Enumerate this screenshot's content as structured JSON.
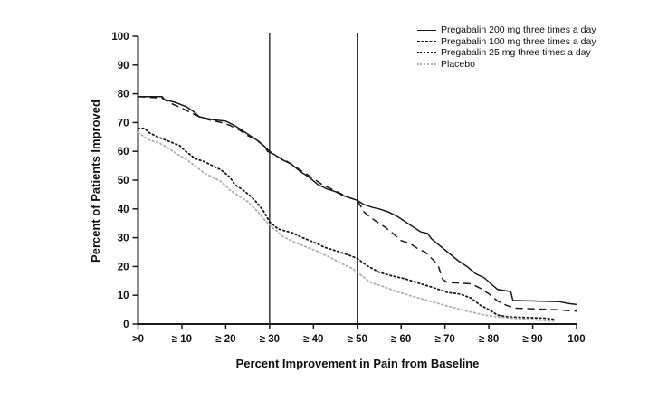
{
  "chart_data": {
    "type": "line",
    "title": "",
    "xlabel": "Percent Improvement in Pain from Baseline",
    "ylabel": "Percent of Patients Improved",
    "xlim": [
      0,
      100
    ],
    "ylim": [
      0,
      100
    ],
    "grid": false,
    "legend_position": "top-right",
    "axis_color": "#1a1a1a",
    "x_ticks": [
      {
        "value": 0,
        "label": ">0"
      },
      {
        "value": 10,
        "label": "≥ 10"
      },
      {
        "value": 20,
        "label": "≥ 20"
      },
      {
        "value": 30,
        "label": "≥ 30"
      },
      {
        "value": 40,
        "label": "≥ 40"
      },
      {
        "value": 50,
        "label": "≥ 50"
      },
      {
        "value": 60,
        "label": "≥ 60"
      },
      {
        "value": 70,
        "label": "≥ 70"
      },
      {
        "value": 80,
        "label": "≥ 80"
      },
      {
        "value": 90,
        "label": "≥ 90"
      },
      {
        "value": 100,
        "label": "100"
      }
    ],
    "y_ticks": [
      {
        "value": 0,
        "label": "0"
      },
      {
        "value": 10,
        "label": "10"
      },
      {
        "value": 20,
        "label": "20"
      },
      {
        "value": 30,
        "label": "30"
      },
      {
        "value": 40,
        "label": "40"
      },
      {
        "value": 50,
        "label": "50"
      },
      {
        "value": 60,
        "label": "60"
      },
      {
        "value": 70,
        "label": "70"
      },
      {
        "value": 80,
        "label": "80"
      },
      {
        "value": 90,
        "label": "90"
      },
      {
        "value": 100,
        "label": "100"
      }
    ],
    "reference_lines": [
      {
        "x": 30
      },
      {
        "x": 50
      }
    ],
    "series": [
      {
        "name": "Pregabalin 200 mg three times a day",
        "style": "solid",
        "color": "#1a1a1a",
        "points": [
          [
            0,
            79
          ],
          [
            5.5,
            79
          ],
          [
            6,
            78
          ],
          [
            8.5,
            77
          ],
          [
            11,
            75.5
          ],
          [
            12.5,
            74
          ],
          [
            14,
            72
          ],
          [
            17,
            71
          ],
          [
            20,
            70.5
          ],
          [
            22,
            69
          ],
          [
            24,
            67
          ],
          [
            26,
            65
          ],
          [
            27.5,
            63.5
          ],
          [
            29,
            61.5
          ],
          [
            29.5,
            60
          ],
          [
            31,
            59
          ],
          [
            33,
            57
          ],
          [
            35,
            55.5
          ],
          [
            37,
            53
          ],
          [
            39,
            51
          ],
          [
            41,
            48.5
          ],
          [
            43,
            47
          ],
          [
            45,
            46
          ],
          [
            47,
            44.5
          ],
          [
            49,
            43.5
          ],
          [
            50,
            43
          ],
          [
            51.5,
            41.5
          ],
          [
            53.5,
            40.5
          ],
          [
            55,
            40
          ],
          [
            57,
            39
          ],
          [
            59,
            37.5
          ],
          [
            60,
            36.5
          ],
          [
            61.5,
            35
          ],
          [
            63,
            33.5
          ],
          [
            64.5,
            32
          ],
          [
            66,
            31.5
          ],
          [
            67,
            29.5
          ],
          [
            69,
            27
          ],
          [
            71,
            24.5
          ],
          [
            73,
            22
          ],
          [
            75,
            20
          ],
          [
            77,
            17.5
          ],
          [
            79,
            16
          ],
          [
            80.5,
            14
          ],
          [
            82,
            12
          ],
          [
            85,
            11.3
          ],
          [
            85.5,
            8.2
          ],
          [
            96,
            7.8
          ],
          [
            98,
            7.2
          ],
          [
            100,
            6.8
          ]
        ]
      },
      {
        "name": "Pregabalin 100 mg three times a day",
        "style": "dashed",
        "color": "#1a1a1a",
        "points": [
          [
            0,
            79
          ],
          [
            5.5,
            78.5
          ],
          [
            7,
            77
          ],
          [
            10,
            75
          ],
          [
            12,
            73.5
          ],
          [
            14,
            72
          ],
          [
            16,
            71
          ],
          [
            19,
            70
          ],
          [
            21,
            69
          ],
          [
            23,
            67.5
          ],
          [
            25,
            65.5
          ],
          [
            27,
            64
          ],
          [
            29,
            61.5
          ],
          [
            30,
            60
          ],
          [
            32,
            58
          ],
          [
            34,
            56.5
          ],
          [
            36,
            54.5
          ],
          [
            38,
            52.5
          ],
          [
            40,
            50.5
          ],
          [
            42,
            48.5
          ],
          [
            44,
            47
          ],
          [
            46,
            45.5
          ],
          [
            48,
            44
          ],
          [
            50,
            43
          ],
          [
            51.5,
            39
          ],
          [
            53,
            37
          ],
          [
            54.5,
            35.5
          ],
          [
            56.5,
            33.5
          ],
          [
            58.5,
            31
          ],
          [
            60,
            29
          ],
          [
            62,
            28
          ],
          [
            64,
            26
          ],
          [
            65.5,
            25
          ],
          [
            67.5,
            22
          ],
          [
            68.5,
            20
          ],
          [
            69.5,
            15.5
          ],
          [
            70.5,
            14.5
          ],
          [
            76,
            14
          ],
          [
            78,
            12.5
          ],
          [
            80,
            10.5
          ],
          [
            82,
            8
          ],
          [
            84,
            6.5
          ],
          [
            86,
            5.5
          ],
          [
            95,
            5
          ],
          [
            100,
            4.5
          ]
        ]
      },
      {
        "name": "Pregabalin 25 mg three times a day",
        "style": "dotted",
        "color": "#1a1a1a",
        "points": [
          [
            0,
            68
          ],
          [
            1.5,
            68
          ],
          [
            2.5,
            66.5
          ],
          [
            4.5,
            65
          ],
          [
            7,
            63.5
          ],
          [
            9.5,
            62
          ],
          [
            10.5,
            60.5
          ],
          [
            13,
            57.5
          ],
          [
            15,
            56.5
          ],
          [
            17,
            55
          ],
          [
            19,
            53.5
          ],
          [
            21,
            51
          ],
          [
            22,
            48.5
          ],
          [
            24,
            46.5
          ],
          [
            26,
            44
          ],
          [
            27.5,
            41.5
          ],
          [
            28.5,
            39.5
          ],
          [
            30,
            35.5
          ],
          [
            32,
            33
          ],
          [
            35,
            31.8
          ],
          [
            37.5,
            30
          ],
          [
            40,
            28.5
          ],
          [
            42.5,
            26.7
          ],
          [
            45,
            25.5
          ],
          [
            48,
            24
          ],
          [
            50,
            22.8
          ],
          [
            52,
            20.5
          ],
          [
            55,
            18
          ],
          [
            58,
            16.7
          ],
          [
            61,
            15.7
          ],
          [
            64,
            14.2
          ],
          [
            67.5,
            12.6
          ],
          [
            70.5,
            11
          ],
          [
            73.5,
            10.4
          ],
          [
            76,
            9
          ],
          [
            78,
            6.6
          ],
          [
            80,
            5
          ],
          [
            82,
            3.1
          ],
          [
            84.5,
            2.5
          ],
          [
            93,
            2
          ],
          [
            95,
            1.6
          ]
        ]
      },
      {
        "name": "Placebo",
        "style": "dotted",
        "color": "#b0b0b0",
        "points": [
          [
            0,
            66.5
          ],
          [
            2.5,
            64
          ],
          [
            5,
            62.8
          ],
          [
            7,
            61
          ],
          [
            9,
            59
          ],
          [
            11,
            57.2
          ],
          [
            13,
            55
          ],
          [
            15,
            52.5
          ],
          [
            17,
            51
          ],
          [
            19,
            49.4
          ],
          [
            21,
            46.5
          ],
          [
            23,
            44.5
          ],
          [
            25,
            42.5
          ],
          [
            27,
            39.5
          ],
          [
            29,
            36
          ],
          [
            30,
            34.5
          ],
          [
            33,
            30.5
          ],
          [
            35.5,
            28.5
          ],
          [
            38,
            27
          ],
          [
            41,
            25.2
          ],
          [
            44,
            23
          ],
          [
            46.5,
            21
          ],
          [
            49,
            19.2
          ],
          [
            50,
            18
          ],
          [
            53,
            14.5
          ],
          [
            56,
            13
          ],
          [
            59,
            11.3
          ],
          [
            62.5,
            9.7
          ],
          [
            66.5,
            8
          ],
          [
            70.5,
            6.3
          ],
          [
            74.5,
            4.7
          ],
          [
            79,
            3.1
          ],
          [
            83,
            2.3
          ],
          [
            90,
            1.5
          ],
          [
            95,
            1
          ]
        ]
      }
    ]
  }
}
